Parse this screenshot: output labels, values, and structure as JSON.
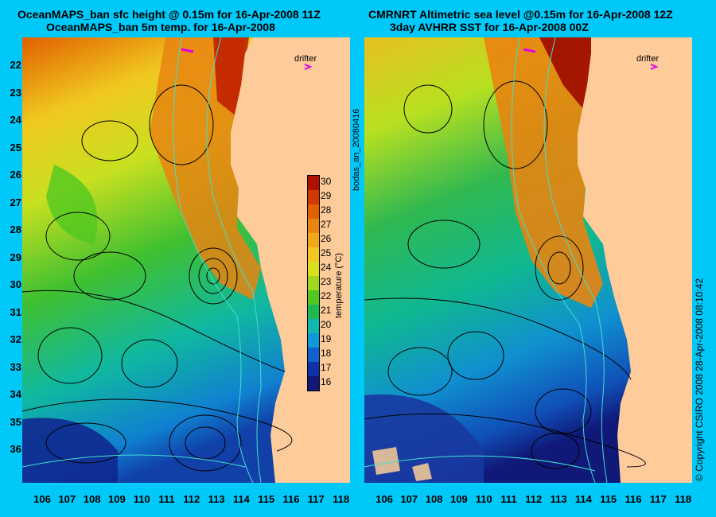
{
  "left_panel": {
    "title_line1": "OceanMAPS_ban sfc height @ 0.15m for 16-Apr-2008 11Z",
    "title_line2": "OceanMAPS_ban 5m temp. for 16-Apr-2008",
    "drifter_label": "drifter"
  },
  "right_panel": {
    "title_line1": "CMRNRT Altimetric sea level  @0.15m  for 16-Apr-2008 12Z",
    "title_line2": "3day AVHRR SST for 16-Apr-2008 00Z",
    "drifter_label": "drifter"
  },
  "side_label": "bodas_an_20080416",
  "copyright": "© Copyright CSIRO 2008   28-Apr-2008 08:10:42",
  "latitude_labels": [
    "22",
    "23",
    "24",
    "25",
    "26",
    "27",
    "28",
    "29",
    "30",
    "31",
    "32",
    "33",
    "34",
    "35",
    "36"
  ],
  "longitude_labels": [
    "106",
    "107",
    "108",
    "109",
    "110",
    "111",
    "112",
    "113",
    "114",
    "115",
    "116",
    "117",
    "118"
  ],
  "colorbar": {
    "title": "temperature (°C)",
    "ticks": [
      "30",
      "29",
      "28",
      "27",
      "26",
      "25",
      "24",
      "23",
      "22",
      "21",
      "20",
      "19",
      "18",
      "17",
      "16"
    ],
    "colors": [
      "#b01000",
      "#d03800",
      "#e06000",
      "#e88410",
      "#f0a818",
      "#f0c820",
      "#d8e020",
      "#a0d820",
      "#50c820",
      "#20b850",
      "#10b8b0",
      "#1098d8",
      "#1060d0",
      "#1030a8",
      "#101878"
    ]
  },
  "colors": {
    "background": "#00c8f8",
    "land": "#fecb9a",
    "contour": "#000000",
    "isobath": "#40e0d0",
    "drifter": "#e000e0"
  }
}
